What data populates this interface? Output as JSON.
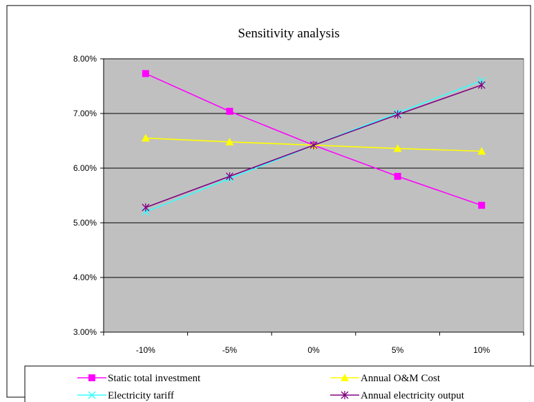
{
  "chart_data": {
    "type": "line",
    "title": "Sensitivity analysis",
    "xlabel": "",
    "ylabel": "",
    "categories": [
      "-10%",
      "-5%",
      "0%",
      "5%",
      "10%"
    ],
    "y_ticks": [
      "3.00%",
      "4.00%",
      "5.00%",
      "6.00%",
      "7.00%",
      "8.00%"
    ],
    "ylim": [
      3.0,
      8.0
    ],
    "y_unit": "%",
    "grid": "horizontal",
    "plot_background": "#c0c0c0",
    "legend_position": "bottom",
    "series": [
      {
        "name": "Static total investment",
        "color": "#ff00ff",
        "marker": "square",
        "values": [
          7.73,
          7.04,
          6.42,
          5.85,
          5.32
        ]
      },
      {
        "name": "Annual O&M Cost",
        "color": "#ffff00",
        "marker": "triangle",
        "values": [
          6.55,
          6.48,
          6.42,
          6.36,
          6.31
        ]
      },
      {
        "name": "Electricity tariff",
        "color": "#33ffff",
        "marker": "x",
        "values": [
          5.2,
          5.81,
          6.42,
          7.01,
          7.6
        ]
      },
      {
        "name": "Annual electricity output",
        "color": "#800080",
        "marker": "star",
        "values": [
          5.28,
          5.85,
          6.42,
          6.98,
          7.52
        ]
      }
    ]
  }
}
